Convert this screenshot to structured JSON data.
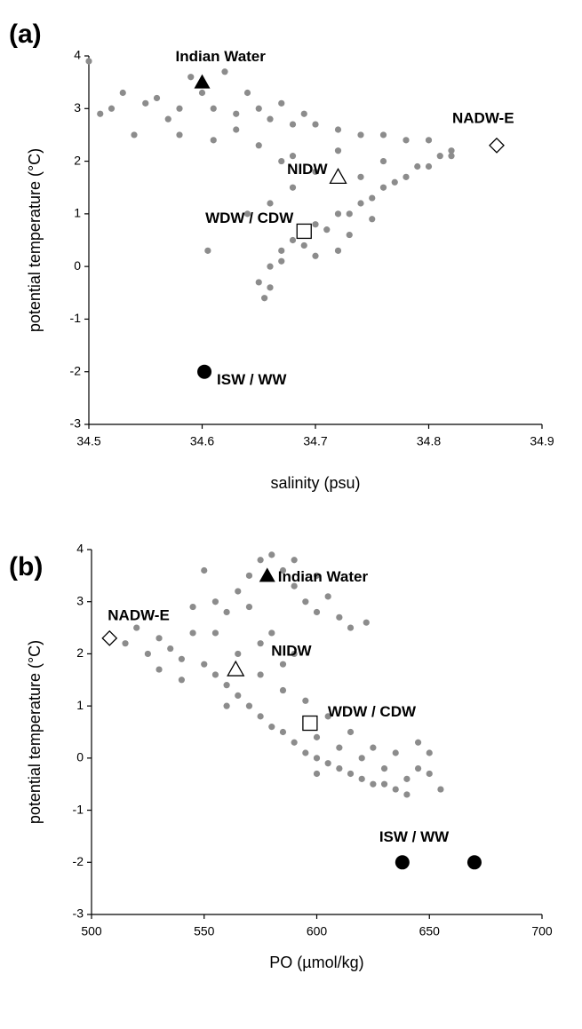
{
  "chart_data": [
    {
      "type": "scatter",
      "panel_label": "(a)",
      "x_label": "salinity (psu)",
      "y_label": "potential temperature (°C)",
      "xlim": [
        34.5,
        34.9
      ],
      "xticks": [
        34.5,
        34.6,
        34.7,
        34.8,
        34.9
      ],
      "ylim": [
        -3,
        4
      ],
      "yticks": [
        -3,
        -2,
        -1,
        0,
        1,
        2,
        3,
        4
      ],
      "color": "#8c8c8c",
      "x": [
        34.5,
        34.51,
        34.52,
        34.53,
        34.54,
        34.55,
        34.56,
        34.57,
        34.58,
        34.59,
        34.6,
        34.61,
        34.62,
        34.63,
        34.64,
        34.65,
        34.66,
        34.67,
        34.68,
        34.69,
        34.7,
        34.72,
        34.74,
        34.76,
        34.78,
        34.8,
        34.82,
        34.81,
        34.8,
        34.78,
        34.76,
        34.74,
        34.72,
        34.7,
        34.68,
        34.67,
        34.66,
        34.65,
        34.655,
        34.66,
        34.67,
        34.69,
        34.71,
        34.73,
        34.75,
        34.77,
        34.79,
        34.82,
        34.7,
        34.68,
        34.66,
        34.64,
        34.67,
        34.72,
        34.76,
        34.74,
        34.73,
        34.75,
        34.7,
        34.72,
        34.605,
        34.61,
        34.63,
        34.65,
        34.68,
        34.58
      ],
      "y": [
        3.9,
        2.9,
        3.0,
        3.3,
        2.5,
        3.1,
        3.2,
        2.8,
        3.0,
        3.6,
        3.3,
        3.0,
        3.7,
        2.9,
        3.3,
        3.0,
        2.8,
        3.1,
        2.7,
        2.9,
        2.7,
        2.6,
        2.5,
        2.5,
        2.4,
        2.4,
        2.2,
        2.1,
        1.9,
        1.7,
        1.5,
        1.2,
        1.0,
        0.8,
        0.5,
        0.3,
        0.0,
        -0.3,
        -0.6,
        -0.4,
        0.1,
        0.4,
        0.7,
        1.0,
        1.3,
        1.6,
        1.9,
        2.1,
        1.8,
        1.5,
        1.2,
        1.0,
        2.0,
        2.2,
        2.0,
        1.7,
        0.6,
        0.9,
        0.2,
        0.3,
        0.3,
        2.4,
        2.6,
        2.3,
        2.1,
        2.5
      ],
      "end_members": [
        {
          "label": "Indian Water",
          "marker": "triangle-filled",
          "x": [
            34.6
          ],
          "y": [
            3.5
          ]
        },
        {
          "label": "NADW-E",
          "marker": "diamond-open",
          "x": [
            34.86
          ],
          "y": [
            2.3
          ]
        },
        {
          "label": "NIDW",
          "marker": "triangle-open",
          "x": [
            34.72
          ],
          "y": [
            1.7
          ]
        },
        {
          "label": "WDW / CDW",
          "marker": "square-open",
          "x": [
            34.69
          ],
          "y": [
            0.67
          ]
        },
        {
          "label": "ISW / WW",
          "marker": "circle-filled",
          "x": [
            34.602
          ],
          "y": [
            -2.0
          ]
        }
      ]
    },
    {
      "type": "scatter",
      "panel_label": "(b)",
      "x_label": "PO (µmol/kg)",
      "y_label": "potential temperature (°C)",
      "xlim": [
        500,
        700
      ],
      "xticks": [
        500,
        550,
        600,
        650,
        700
      ],
      "ylim": [
        -3,
        4
      ],
      "yticks": [
        -3,
        -2,
        -1,
        0,
        1,
        2,
        3,
        4
      ],
      "color": "#8c8c8c",
      "x": [
        515,
        520,
        525,
        530,
        535,
        540,
        545,
        550,
        555,
        560,
        565,
        570,
        575,
        580,
        585,
        590,
        595,
        600,
        605,
        610,
        615,
        620,
        625,
        630,
        635,
        640,
        645,
        650,
        655,
        645,
        635,
        625,
        615,
        605,
        595,
        585,
        575,
        565,
        555,
        560,
        565,
        570,
        575,
        580,
        585,
        590,
        595,
        600,
        605,
        610,
        615,
        622,
        590,
        570,
        580,
        550,
        545,
        555,
        600,
        575,
        590,
        585,
        560,
        600,
        610,
        620,
        630,
        540,
        530,
        600,
        640,
        650
      ],
      "y": [
        2.2,
        2.5,
        2.0,
        2.3,
        2.1,
        1.9,
        2.4,
        1.8,
        1.6,
        1.4,
        1.2,
        1.0,
        0.8,
        0.6,
        0.5,
        0.3,
        0.1,
        0.0,
        -0.1,
        -0.2,
        -0.3,
        -0.4,
        -0.5,
        -0.5,
        -0.6,
        -0.4,
        -0.2,
        -0.3,
        -0.6,
        0.3,
        0.1,
        0.2,
        0.5,
        0.8,
        1.1,
        1.3,
        1.6,
        2.0,
        2.4,
        2.8,
        3.2,
        3.5,
        3.8,
        3.9,
        3.6,
        3.3,
        3.0,
        2.8,
        3.1,
        2.7,
        2.5,
        2.6,
        3.8,
        2.9,
        2.4,
        3.6,
        2.9,
        3.0,
        3.5,
        2.2,
        2.0,
        1.8,
        1.0,
        0.4,
        0.2,
        0.0,
        -0.2,
        1.5,
        1.7,
        -0.3,
        -0.7,
        0.1
      ],
      "end_members": [
        {
          "label": "Indian Water",
          "marker": "triangle-filled",
          "x": [
            578
          ],
          "y": [
            3.5
          ]
        },
        {
          "label": "NADW-E",
          "marker": "diamond-open",
          "x": [
            508
          ],
          "y": [
            2.3
          ]
        },
        {
          "label": "NIDW",
          "marker": "triangle-open",
          "x": [
            564
          ],
          "y": [
            1.7
          ]
        },
        {
          "label": "WDW / CDW",
          "marker": "square-open",
          "x": [
            597
          ],
          "y": [
            0.67
          ]
        },
        {
          "label": "ISW / WW",
          "marker": "circle-filled",
          "x": [
            638,
            670
          ],
          "y": [
            -2.0,
            -2.0
          ]
        }
      ]
    }
  ]
}
